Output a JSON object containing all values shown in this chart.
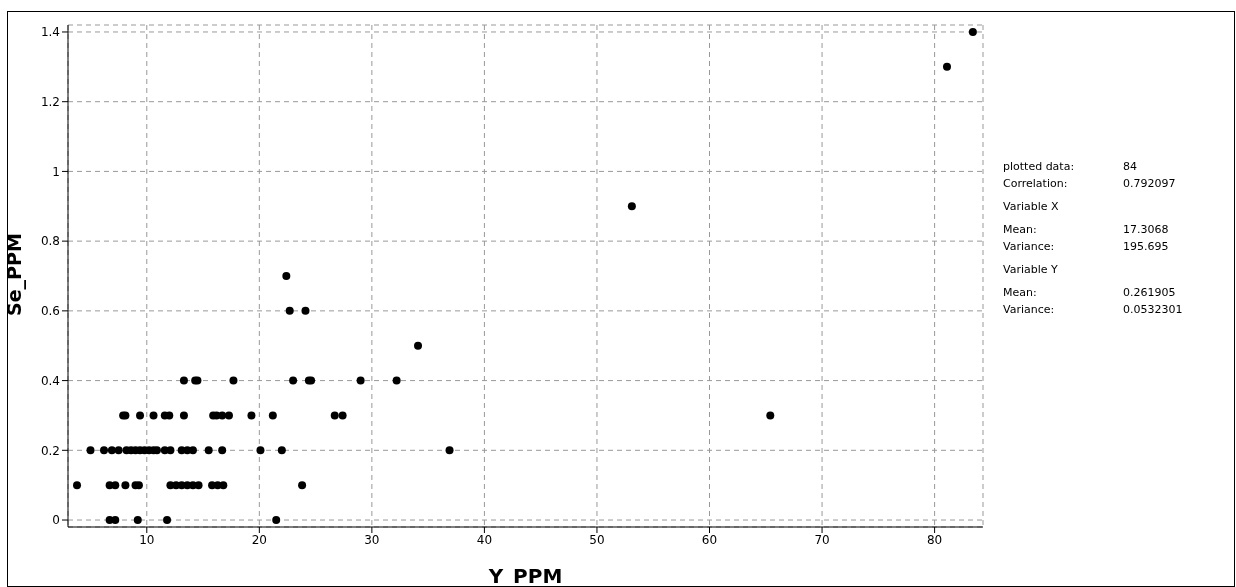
{
  "chart_data": {
    "type": "scatter",
    "xlabel": "Y_PPM",
    "ylabel": "Se_PPM",
    "x": [
      13.3,
      14.3,
      14.5,
      17.7,
      23.0,
      24.4,
      24.6,
      29.0,
      32.2,
      34.1,
      7.9,
      8.1,
      9.4,
      10.6,
      11.6,
      12.0,
      13.3,
      15.9,
      16.2,
      16.7,
      17.3,
      19.3,
      21.2,
      26.7,
      27.4,
      65.4,
      5.0,
      6.2,
      6.9,
      7.5,
      8.2,
      8.6,
      9.0,
      9.4,
      9.8,
      10.2,
      10.6,
      10.9,
      11.6,
      12.1,
      13.1,
      13.6,
      14.1,
      15.5,
      16.7,
      20.1,
      22.0,
      36.9,
      3.8,
      6.7,
      7.2,
      8.1,
      9.0,
      9.3,
      12.1,
      12.6,
      13.1,
      13.6,
      14.1,
      14.6,
      15.8,
      16.3,
      16.8,
      23.8,
      6.7,
      7.2,
      9.2,
      11.8,
      21.5,
      22.4,
      22.7,
      24.1,
      53.1,
      81.1,
      83.4
    ],
    "values": [
      0.4,
      0.4,
      0.4,
      0.4,
      0.4,
      0.4,
      0.4,
      0.4,
      0.4,
      0.5,
      0.3,
      0.3,
      0.3,
      0.3,
      0.3,
      0.3,
      0.3,
      0.3,
      0.3,
      0.3,
      0.3,
      0.3,
      0.3,
      0.3,
      0.3,
      0.3,
      0.2,
      0.2,
      0.2,
      0.2,
      0.2,
      0.2,
      0.2,
      0.2,
      0.2,
      0.2,
      0.2,
      0.2,
      0.2,
      0.2,
      0.2,
      0.2,
      0.2,
      0.2,
      0.2,
      0.2,
      0.2,
      0.2,
      0.1,
      0.1,
      0.1,
      0.1,
      0.1,
      0.1,
      0.1,
      0.1,
      0.1,
      0.1,
      0.1,
      0.1,
      0.1,
      0.1,
      0.1,
      0.1,
      0,
      0,
      0,
      0,
      0,
      0.7,
      0.6,
      0.6,
      0.9,
      1.3,
      1.4
    ],
    "color": "#000000",
    "marker": "circle",
    "xlim": [
      3,
      84.3
    ],
    "xticks": [
      10,
      20,
      30,
      40,
      50,
      60,
      70,
      80
    ],
    "ylim": [
      -0.02,
      1.42
    ],
    "yticks": [
      {
        "value": 0,
        "label": "0"
      },
      0.2,
      0.4,
      0.6,
      0.8,
      {
        "value": 1,
        "label": "1"
      },
      1.2,
      1.4
    ],
    "grid": true,
    "annotations": [
      "plotted data:",
      "84",
      "Correlation:",
      "0.792097",
      "Variable X",
      "Mean:",
      "17.3068",
      "Variance:",
      "195.695",
      "Variable Y",
      "Mean:",
      "0.261905",
      "Variance:",
      "0.0532301"
    ]
  }
}
